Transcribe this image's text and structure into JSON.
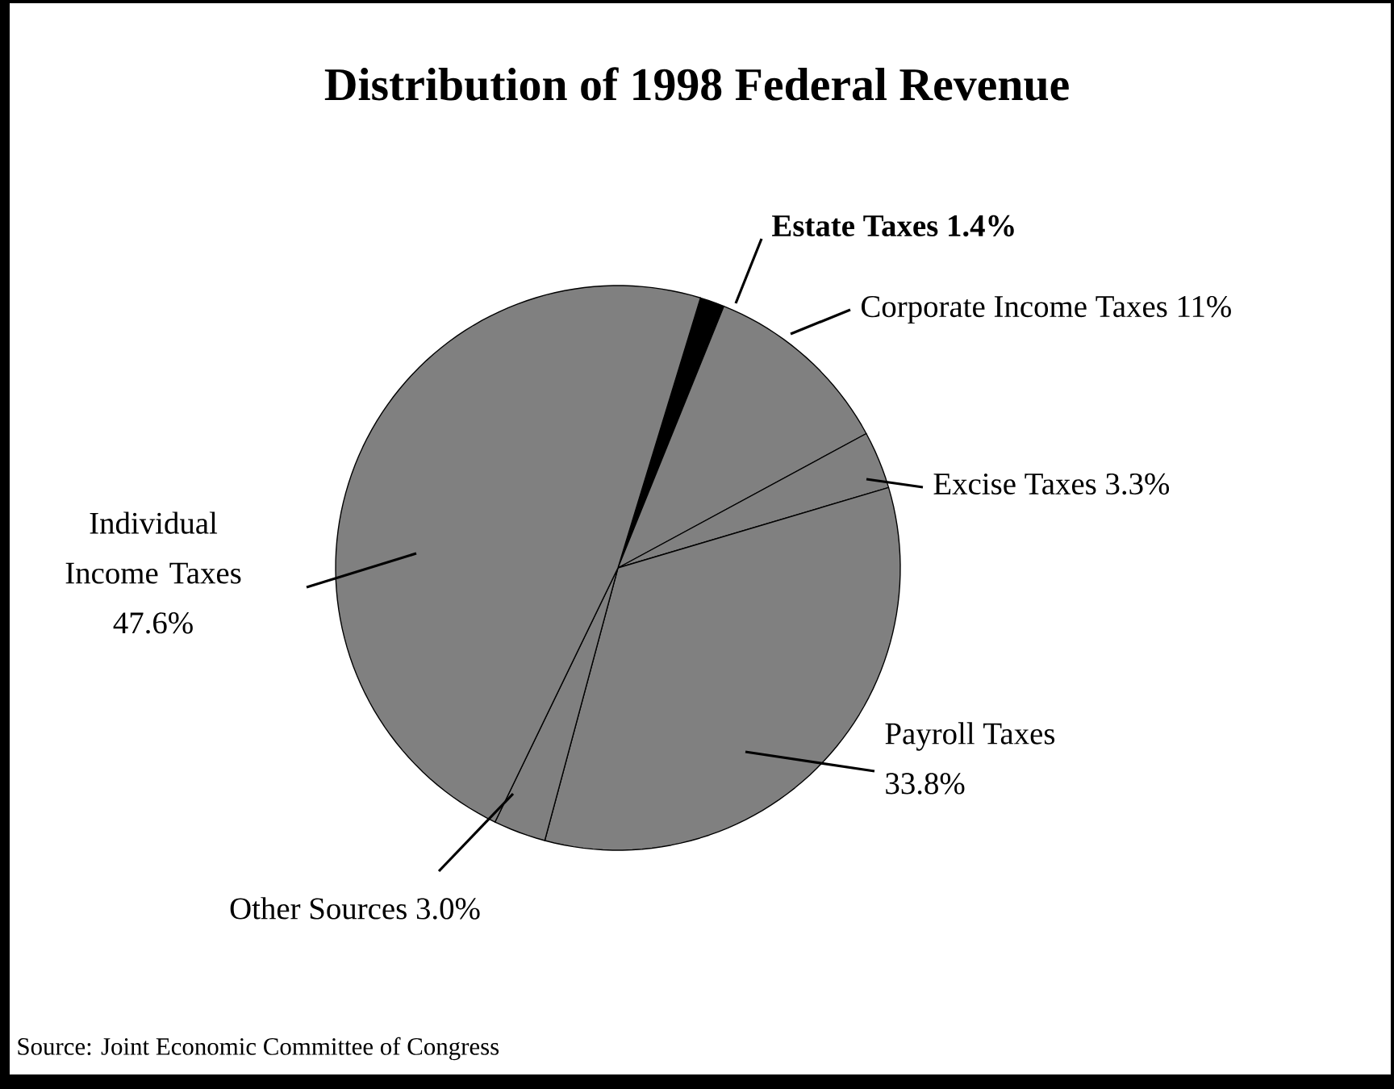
{
  "chart_data": {
    "type": "pie",
    "title": "Distribution of 1998 Federal Revenue",
    "categories": [
      "**Estate Taxes**",
      "Corporate Income Taxes",
      "Excise Taxes",
      "Payroll Taxes",
      "Other Sources",
      "Individual Income Taxes"
    ],
    "values": [
      1.4,
      11,
      3.3,
      33.8,
      3.0,
      47.6
    ],
    "value_labels": [
      "**1.4%**",
      "11%",
      "3.3%",
      "33.8%",
      "3.0%",
      "47.6%"
    ],
    "colors": [
      "#000000",
      "#808080",
      "#808080",
      "#808080",
      "#808080",
      "#808080"
    ],
    "annotations": [
      "Source:  Joint Economic Committee of Congress"
    ]
  }
}
